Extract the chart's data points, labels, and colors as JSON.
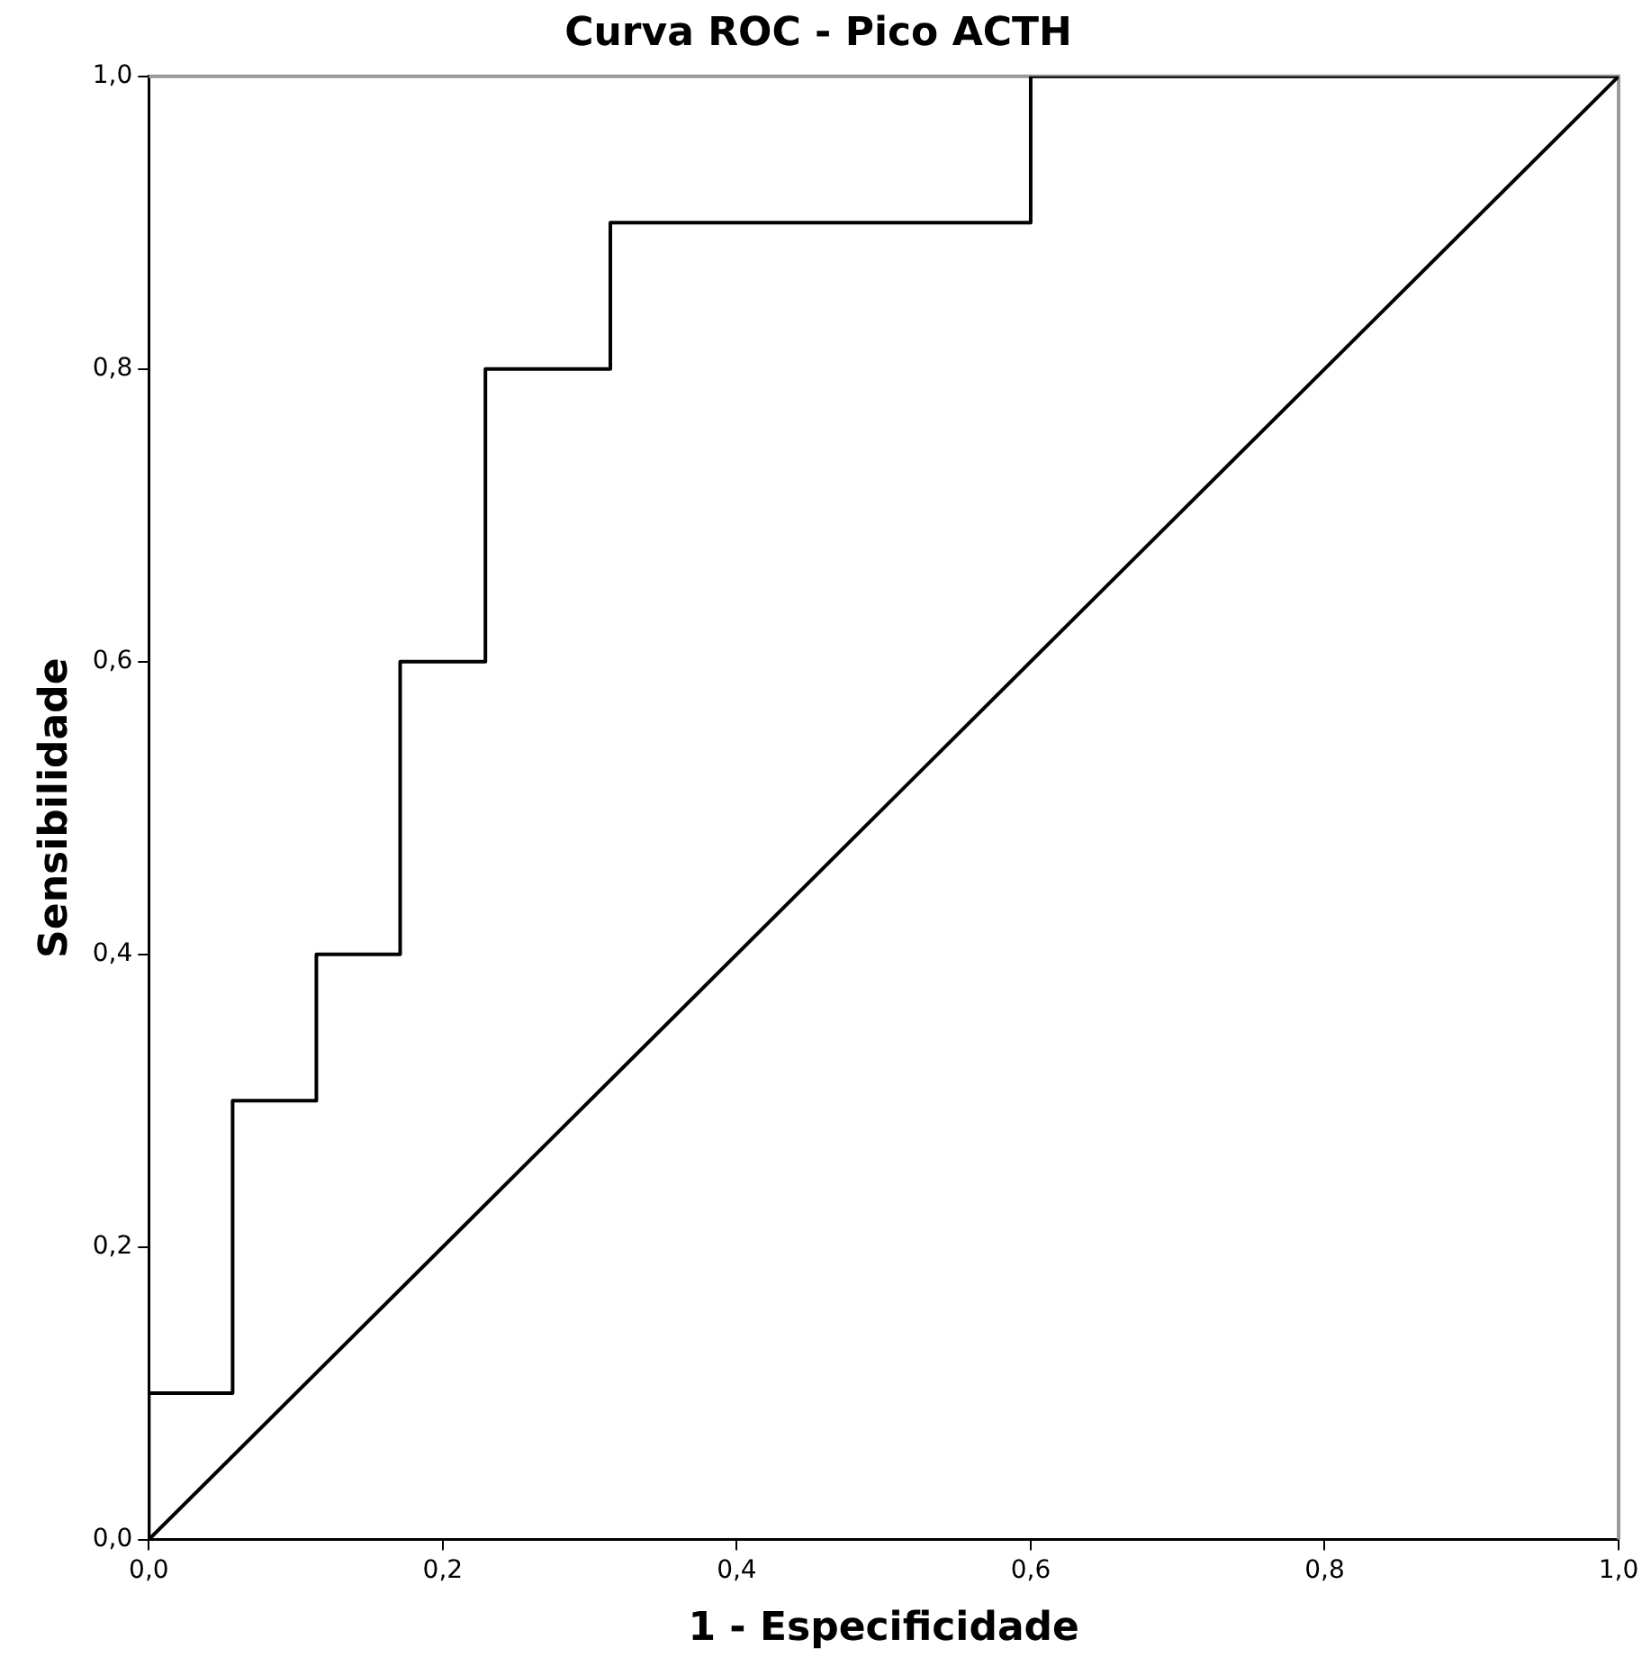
{
  "chart_data": {
    "type": "line",
    "title": "Curva ROC - Pico ACTH",
    "xlabel": "1 - Especificidade",
    "ylabel": "Sensibilidade",
    "series": [
      {
        "type": "step",
        "color": "#000000",
        "x": [
          0,
          0,
          0.057,
          0.114,
          0.171,
          0.229,
          0.314,
          0.6,
          1
        ],
        "values": [
          0,
          0.1,
          0.3,
          0.4,
          0.6,
          0.8,
          0.9,
          1,
          1
        ]
      },
      {
        "type": "line",
        "color": "#000000",
        "x": [
          0,
          1
        ],
        "values": [
          0,
          1
        ]
      }
    ],
    "xlim": [
      0,
      1
    ],
    "ylim": [
      0,
      1
    ],
    "xticks": [
      {
        "value": 0,
        "label": "0,0"
      },
      {
        "value": 0.2,
        "label": "0,2"
      },
      {
        "value": 0.4,
        "label": "0,4"
      },
      {
        "value": 0.6,
        "label": "0,6"
      },
      {
        "value": 0.8,
        "label": "0,8"
      },
      {
        "value": 1,
        "label": "1,0"
      }
    ],
    "yticks": [
      {
        "value": 0,
        "label": "0,0"
      },
      {
        "value": 0.2,
        "label": "0,2"
      },
      {
        "value": 0.4,
        "label": "0,4"
      },
      {
        "value": 0.6,
        "label": "0,6"
      },
      {
        "value": 0.8,
        "label": "0,8"
      },
      {
        "value": 1,
        "label": "1,0"
      }
    ],
    "grid": false,
    "legend": false,
    "marker": "none",
    "line_style": "solid"
  }
}
